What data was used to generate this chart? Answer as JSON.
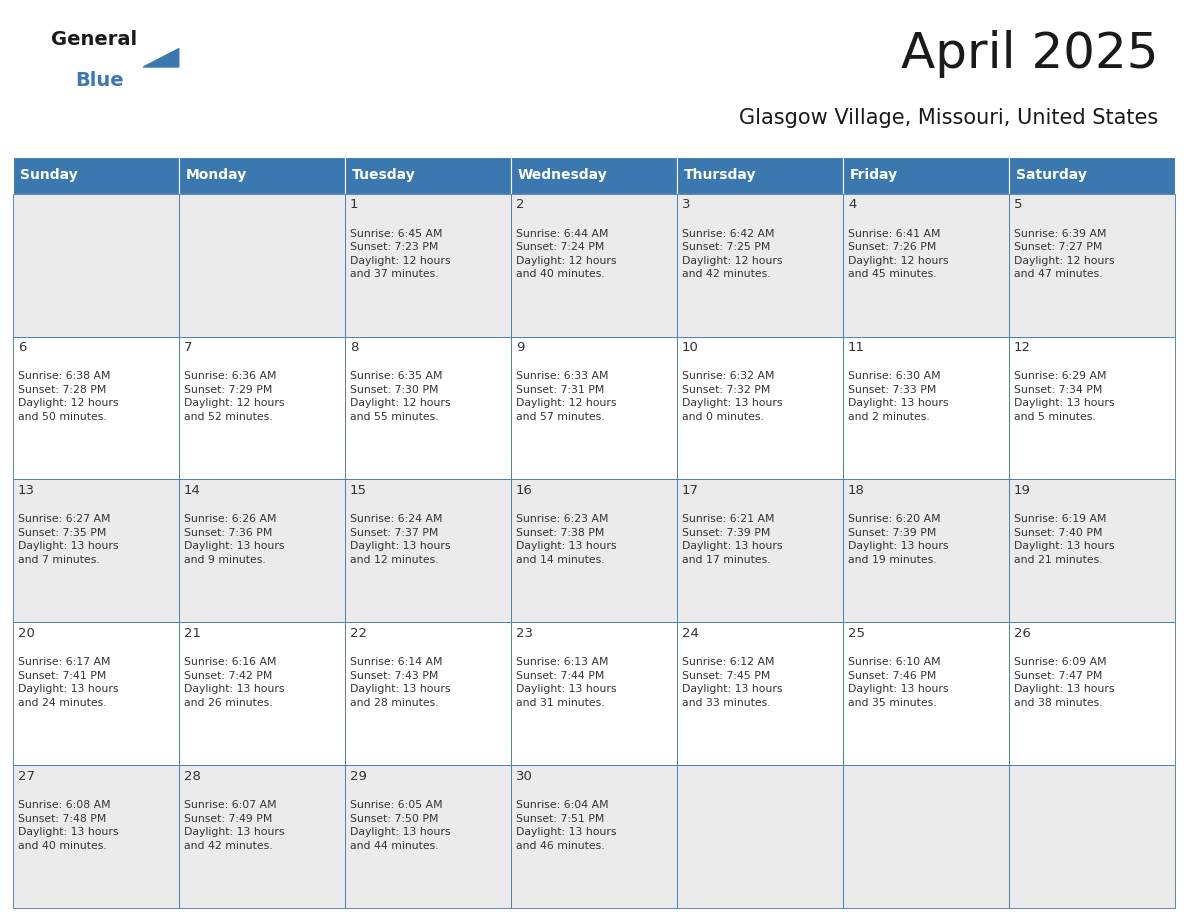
{
  "title": "April 2025",
  "subtitle": "Glasgow Village, Missouri, United States",
  "header_color": "#3B78B0",
  "header_text_color": "#FFFFFF",
  "days_of_week": [
    "Sunday",
    "Monday",
    "Tuesday",
    "Wednesday",
    "Thursday",
    "Friday",
    "Saturday"
  ],
  "cell_bg_even": "#EBEBEB",
  "cell_bg_odd": "#FFFFFF",
  "cell_border_color": "#3B78B0",
  "text_color": "#333333",
  "title_color": "#1a1a1a",
  "subtitle_color": "#1a1a1a",
  "logo_general_color": "#1a1a1a",
  "logo_blue_color": "#3B78B0",
  "weeks": [
    [
      {
        "day": "",
        "info": ""
      },
      {
        "day": "",
        "info": ""
      },
      {
        "day": "1",
        "info": "Sunrise: 6:45 AM\nSunset: 7:23 PM\nDaylight: 12 hours\nand 37 minutes."
      },
      {
        "day": "2",
        "info": "Sunrise: 6:44 AM\nSunset: 7:24 PM\nDaylight: 12 hours\nand 40 minutes."
      },
      {
        "day": "3",
        "info": "Sunrise: 6:42 AM\nSunset: 7:25 PM\nDaylight: 12 hours\nand 42 minutes."
      },
      {
        "day": "4",
        "info": "Sunrise: 6:41 AM\nSunset: 7:26 PM\nDaylight: 12 hours\nand 45 minutes."
      },
      {
        "day": "5",
        "info": "Sunrise: 6:39 AM\nSunset: 7:27 PM\nDaylight: 12 hours\nand 47 minutes."
      }
    ],
    [
      {
        "day": "6",
        "info": "Sunrise: 6:38 AM\nSunset: 7:28 PM\nDaylight: 12 hours\nand 50 minutes."
      },
      {
        "day": "7",
        "info": "Sunrise: 6:36 AM\nSunset: 7:29 PM\nDaylight: 12 hours\nand 52 minutes."
      },
      {
        "day": "8",
        "info": "Sunrise: 6:35 AM\nSunset: 7:30 PM\nDaylight: 12 hours\nand 55 minutes."
      },
      {
        "day": "9",
        "info": "Sunrise: 6:33 AM\nSunset: 7:31 PM\nDaylight: 12 hours\nand 57 minutes."
      },
      {
        "day": "10",
        "info": "Sunrise: 6:32 AM\nSunset: 7:32 PM\nDaylight: 13 hours\nand 0 minutes."
      },
      {
        "day": "11",
        "info": "Sunrise: 6:30 AM\nSunset: 7:33 PM\nDaylight: 13 hours\nand 2 minutes."
      },
      {
        "day": "12",
        "info": "Sunrise: 6:29 AM\nSunset: 7:34 PM\nDaylight: 13 hours\nand 5 minutes."
      }
    ],
    [
      {
        "day": "13",
        "info": "Sunrise: 6:27 AM\nSunset: 7:35 PM\nDaylight: 13 hours\nand 7 minutes."
      },
      {
        "day": "14",
        "info": "Sunrise: 6:26 AM\nSunset: 7:36 PM\nDaylight: 13 hours\nand 9 minutes."
      },
      {
        "day": "15",
        "info": "Sunrise: 6:24 AM\nSunset: 7:37 PM\nDaylight: 13 hours\nand 12 minutes."
      },
      {
        "day": "16",
        "info": "Sunrise: 6:23 AM\nSunset: 7:38 PM\nDaylight: 13 hours\nand 14 minutes."
      },
      {
        "day": "17",
        "info": "Sunrise: 6:21 AM\nSunset: 7:39 PM\nDaylight: 13 hours\nand 17 minutes."
      },
      {
        "day": "18",
        "info": "Sunrise: 6:20 AM\nSunset: 7:39 PM\nDaylight: 13 hours\nand 19 minutes."
      },
      {
        "day": "19",
        "info": "Sunrise: 6:19 AM\nSunset: 7:40 PM\nDaylight: 13 hours\nand 21 minutes."
      }
    ],
    [
      {
        "day": "20",
        "info": "Sunrise: 6:17 AM\nSunset: 7:41 PM\nDaylight: 13 hours\nand 24 minutes."
      },
      {
        "day": "21",
        "info": "Sunrise: 6:16 AM\nSunset: 7:42 PM\nDaylight: 13 hours\nand 26 minutes."
      },
      {
        "day": "22",
        "info": "Sunrise: 6:14 AM\nSunset: 7:43 PM\nDaylight: 13 hours\nand 28 minutes."
      },
      {
        "day": "23",
        "info": "Sunrise: 6:13 AM\nSunset: 7:44 PM\nDaylight: 13 hours\nand 31 minutes."
      },
      {
        "day": "24",
        "info": "Sunrise: 6:12 AM\nSunset: 7:45 PM\nDaylight: 13 hours\nand 33 minutes."
      },
      {
        "day": "25",
        "info": "Sunrise: 6:10 AM\nSunset: 7:46 PM\nDaylight: 13 hours\nand 35 minutes."
      },
      {
        "day": "26",
        "info": "Sunrise: 6:09 AM\nSunset: 7:47 PM\nDaylight: 13 hours\nand 38 minutes."
      }
    ],
    [
      {
        "day": "27",
        "info": "Sunrise: 6:08 AM\nSunset: 7:48 PM\nDaylight: 13 hours\nand 40 minutes."
      },
      {
        "day": "28",
        "info": "Sunrise: 6:07 AM\nSunset: 7:49 PM\nDaylight: 13 hours\nand 42 minutes."
      },
      {
        "day": "29",
        "info": "Sunrise: 6:05 AM\nSunset: 7:50 PM\nDaylight: 13 hours\nand 44 minutes."
      },
      {
        "day": "30",
        "info": "Sunrise: 6:04 AM\nSunset: 7:51 PM\nDaylight: 13 hours\nand 46 minutes."
      },
      {
        "day": "",
        "info": ""
      },
      {
        "day": "",
        "info": ""
      },
      {
        "day": "",
        "info": ""
      }
    ]
  ]
}
